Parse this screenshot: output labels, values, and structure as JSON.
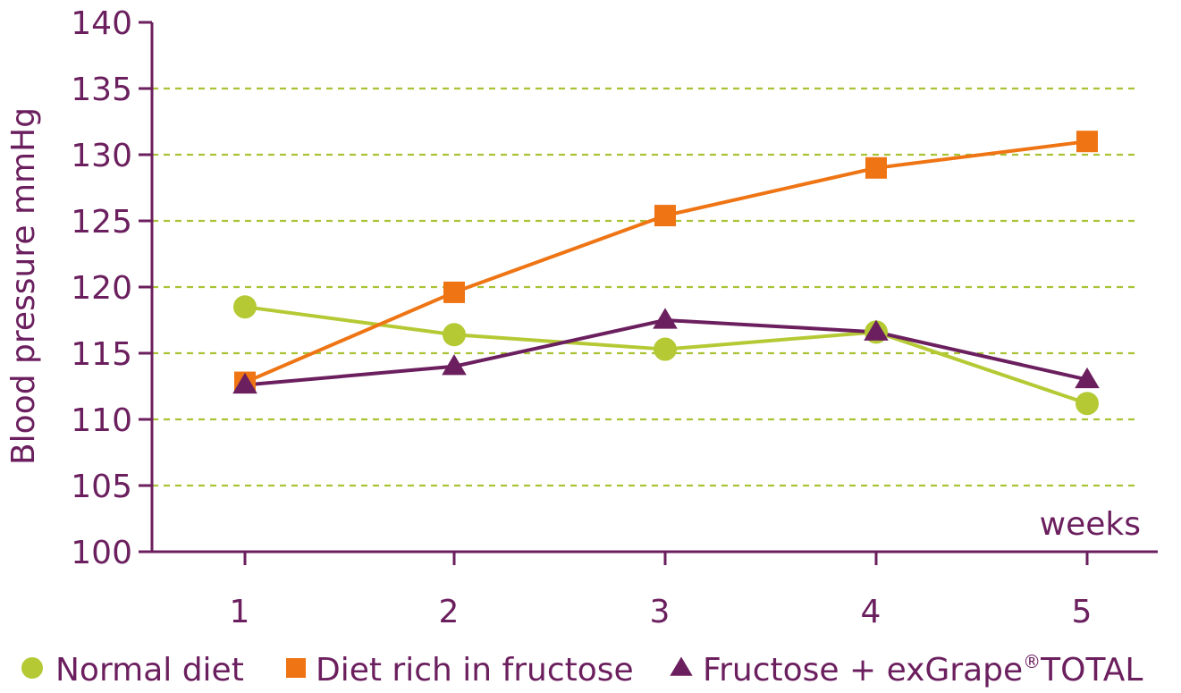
{
  "colors": {
    "axis": "#6b1f5e",
    "grid": "#a8c334",
    "text": "#6b1f5e"
  },
  "chart_data": {
    "type": "line",
    "title": "",
    "xlabel": "weeks",
    "ylabel": "Blood pressure mmHg",
    "categories": [
      "1",
      "2",
      "3",
      "4",
      "5"
    ],
    "ylim": [
      100,
      140
    ],
    "yticks": [
      "100",
      "105",
      "110",
      "115",
      "120",
      "125",
      "130",
      "135",
      "140"
    ],
    "grid": "horizontal-dashed",
    "legend_position": "bottom",
    "series": [
      {
        "name": "Normal diet",
        "marker": "circle",
        "color": "#b5c934",
        "values": [
          118.5,
          116.4,
          115.3,
          116.6,
          111.2
        ]
      },
      {
        "name": "Diet rich in fructose",
        "marker": "square",
        "color": "#ee7414",
        "values": [
          112.8,
          119.6,
          125.4,
          129.0,
          131.0
        ]
      },
      {
        "name": "Fructose + exGrape",
        "name_superscript": "®",
        "name_suffix": "TOTAL",
        "marker": "triangle",
        "color": "#6b1f5e",
        "values": [
          112.6,
          114.0,
          117.5,
          116.6,
          113.0
        ]
      }
    ]
  }
}
